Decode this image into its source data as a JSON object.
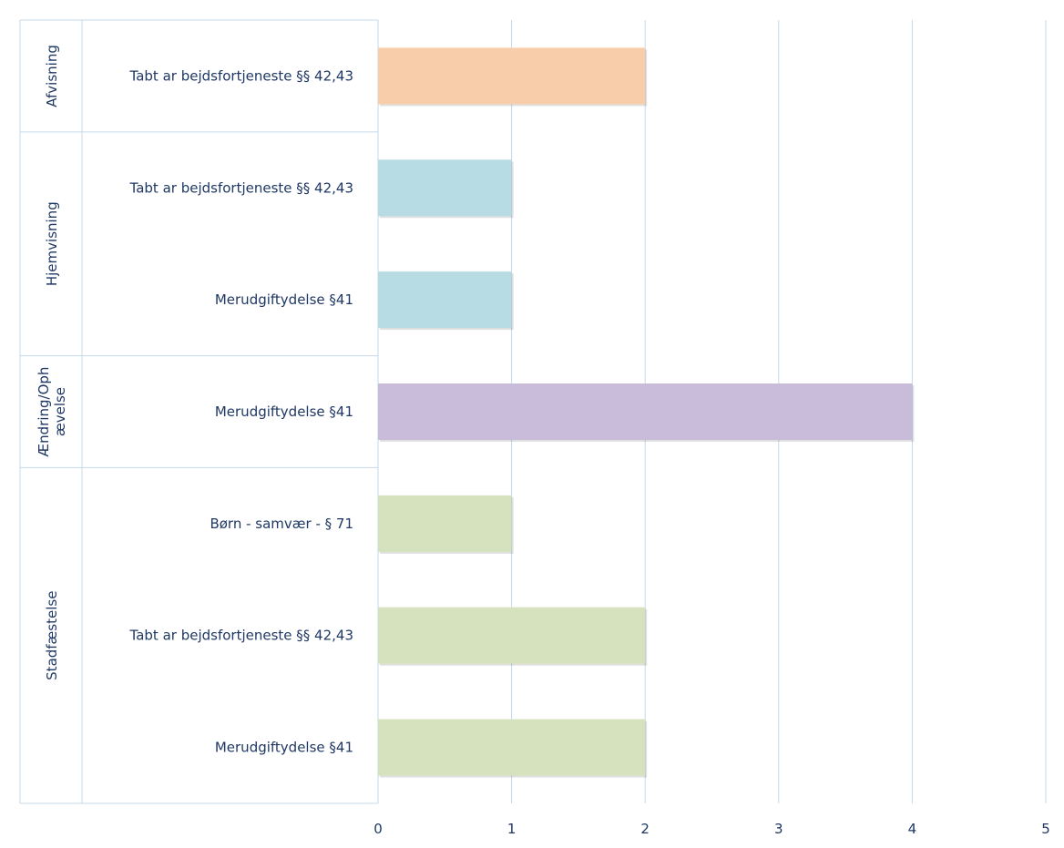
{
  "chart_data": {
    "type": "bar",
    "orientation": "horizontal",
    "title": "",
    "xlim": [
      0,
      5
    ],
    "x_ticks": [
      "0",
      "1",
      "2",
      "3",
      "4",
      "5"
    ],
    "grid": "vertical",
    "groups": [
      {
        "name": "Afvisning",
        "label_lines": [
          "Afvisning"
        ],
        "color": "#f8ceaa",
        "bars": [
          {
            "category": "Tabt ar bejdsfortjeneste §§ 42,43",
            "value": 2
          }
        ]
      },
      {
        "name": "Hjemvisning",
        "label_lines": [
          "Hjemvisning"
        ],
        "color": "#b7dce4",
        "bars": [
          {
            "category": "Tabt ar bejdsfortjeneste §§ 42,43",
            "value": 1
          },
          {
            "category": "Merudgiftydelse §41",
            "value": 1
          }
        ]
      },
      {
        "name": "Ændring/Oph ævelse",
        "label_lines": [
          "Ændring/Oph",
          "ævelse"
        ],
        "color": "#c9bcda",
        "bars": [
          {
            "category": "Merudgiftydelse §41",
            "value": 4
          }
        ]
      },
      {
        "name": "Stadfæstelse",
        "label_lines": [
          "Stadfæstelse"
        ],
        "color": "#d6e2bd",
        "bars": [
          {
            "category": "Børn - samvær - § 71",
            "value": 1
          },
          {
            "category": "Tabt ar bejdsfortjeneste §§ 42,43",
            "value": 2
          },
          {
            "category": "Merudgiftydelse §41",
            "value": 2
          }
        ]
      }
    ]
  }
}
